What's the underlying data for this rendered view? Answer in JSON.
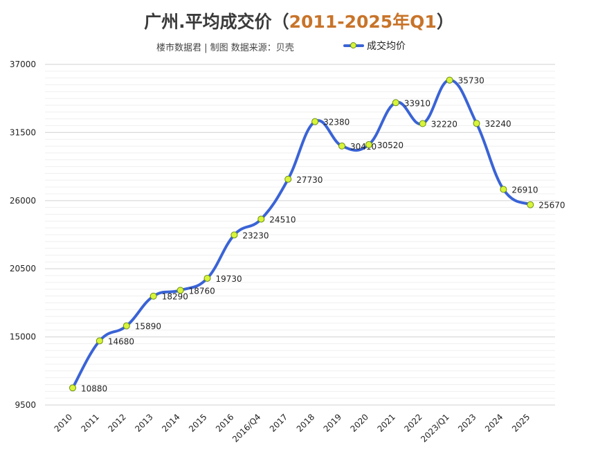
{
  "title_main": "广州.平均成交价（",
  "title_accent": "2011-2025年Q1",
  "title_end": "）",
  "subtitle": "楼市数据君 | 制图   数据来源：贝壳",
  "colors": {
    "line": "#3a63d6",
    "marker": "#d8f53a",
    "grid": "#d9d9d9"
  },
  "chart_data": {
    "type": "line",
    "categories": [
      "2010",
      "2011",
      "2012",
      "2013",
      "2014",
      "2015",
      "2016",
      "2016/Q4",
      "2017",
      "2018",
      "2019",
      "2020",
      "2021",
      "2022",
      "2023/Q1",
      "2023",
      "2024",
      "2025"
    ],
    "series": [
      {
        "name": "成交均价",
        "values": [
          10880,
          14680,
          15890,
          18290,
          18760,
          19730,
          23230,
          24510,
          27730,
          32380,
          30410,
          30520,
          33910,
          32220,
          35730,
          32240,
          26910,
          25670
        ]
      }
    ],
    "ylim": [
      9500,
      37000
    ],
    "yticks": [
      9500,
      15000,
      20500,
      26000,
      31500,
      37000
    ],
    "grid": true,
    "legend_position": "top"
  }
}
